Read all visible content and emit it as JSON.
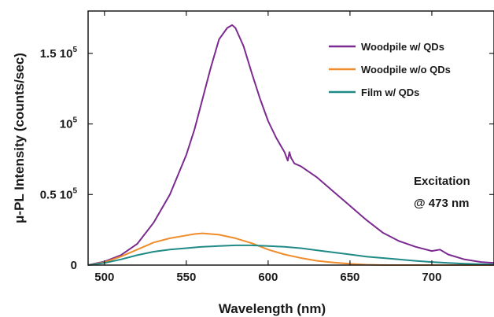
{
  "chart_data": {
    "type": "line",
    "xlabel": "Wavelength (nm)",
    "ylabel": "μ-PL Intensity (counts/sec)",
    "xlim": [
      490,
      738
    ],
    "ylim": [
      0,
      180000
    ],
    "xticks": [
      {
        "value": 500,
        "label": "500"
      },
      {
        "value": 550,
        "label": "550"
      },
      {
        "value": 600,
        "label": "600"
      },
      {
        "value": 650,
        "label": "650"
      },
      {
        "value": 700,
        "label": "700"
      }
    ],
    "yticks": [
      {
        "value": 0,
        "label": "0",
        "sup": ""
      },
      {
        "value": 50000,
        "label": "0.5 10",
        "sup": "5"
      },
      {
        "value": 100000,
        "label": "10",
        "sup": "5"
      },
      {
        "value": 150000,
        "label": "1.5 10",
        "sup": "5"
      }
    ],
    "legend_position": "top-right",
    "annotation": [
      "Excitation",
      "@ 473 nm"
    ],
    "series": [
      {
        "name": "Woodpile w/ QDs",
        "color": "#7b2a8f",
        "x": [
          490,
          500,
          510,
          520,
          530,
          540,
          550,
          555,
          560,
          565,
          570,
          575,
          578,
          580,
          585,
          590,
          595,
          600,
          605,
          610,
          612,
          613,
          614,
          616,
          620,
          625,
          630,
          640,
          650,
          660,
          670,
          680,
          690,
          700,
          705,
          710,
          720,
          730,
          738
        ],
        "y": [
          0,
          2500,
          7000,
          15000,
          30000,
          50000,
          78000,
          96000,
          118000,
          140000,
          160000,
          168000,
          170000,
          168000,
          155000,
          136000,
          118000,
          102000,
          90000,
          80000,
          74000,
          80000,
          76000,
          72000,
          70000,
          66000,
          62000,
          52000,
          42000,
          32000,
          23000,
          17000,
          13000,
          10000,
          11000,
          7500,
          4000,
          2200,
          1500
        ]
      },
      {
        "name": "Woodpile w/o QDs",
        "color": "#f08c2a",
        "x": [
          490,
          500,
          510,
          520,
          530,
          540,
          550,
          555,
          560,
          565,
          570,
          580,
          590,
          600,
          610,
          620,
          630,
          640,
          650,
          660,
          670,
          738
        ],
        "y": [
          0,
          2000,
          6000,
          11000,
          16000,
          19000,
          21000,
          22000,
          22500,
          22000,
          21500,
          19000,
          15500,
          11000,
          7500,
          5000,
          3000,
          1800,
          900,
          300,
          0,
          0
        ]
      },
      {
        "name": "Film w/ QDs",
        "color": "#1f8a86",
        "x": [
          490,
          500,
          510,
          520,
          530,
          540,
          550,
          560,
          570,
          580,
          590,
          600,
          610,
          620,
          630,
          640,
          650,
          660,
          670,
          680,
          690,
          700,
          710,
          720,
          730,
          738
        ],
        "y": [
          0,
          1500,
          4000,
          7000,
          9500,
          11000,
          12000,
          13000,
          13500,
          14000,
          14000,
          13500,
          13000,
          12000,
          10500,
          9000,
          7500,
          6000,
          5000,
          4000,
          3000,
          2200,
          1500,
          1000,
          600,
          400
        ]
      }
    ]
  }
}
